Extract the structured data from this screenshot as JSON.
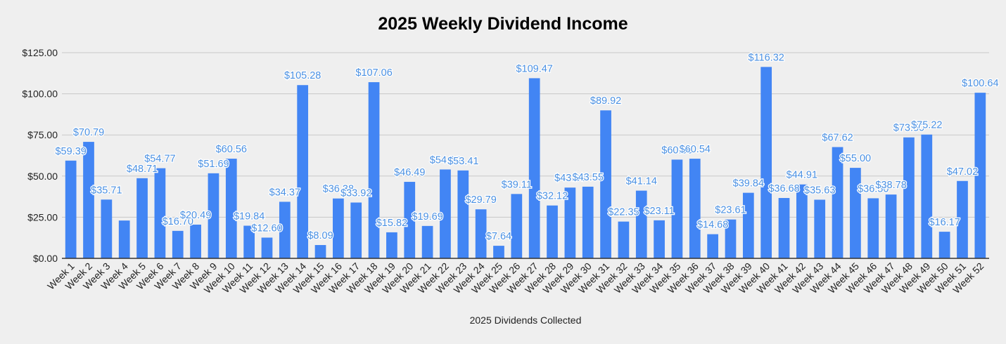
{
  "chart_data": {
    "type": "bar",
    "title": "2025 Weekly Dividend Income",
    "xlabel": "2025 Dividends Collected",
    "ylabel": "",
    "ylim": [
      0,
      125
    ],
    "yticks": [
      "$0.00",
      "$25.00",
      "$50.00",
      "$75.00",
      "$100.00",
      "$125.00"
    ],
    "grid": true,
    "legend": "none",
    "bar_color": "#4285f4",
    "label_color": "#4a90e2",
    "categories": [
      "Week 1",
      "Week 2",
      "Week 3",
      "Week 4",
      "Week 5",
      "Week 6",
      "Week 7",
      "Week 8",
      "Week 9",
      "Week 10",
      "Week 11",
      "Week 12",
      "Week 13",
      "Week 14",
      "Week 15",
      "Week 16",
      "Week 17",
      "Week 18",
      "Week 19",
      "Week 20",
      "Week 21",
      "Week 22",
      "Week 23",
      "Week 24",
      "Week 25",
      "Week 26",
      "Week 27",
      "Week 28",
      "Week 29",
      "Week 30",
      "Week 31",
      "Week 32",
      "Week 33",
      "Week 34",
      "Week 35",
      "Week 36",
      "Week 37",
      "Week 38",
      "Week 39",
      "Week 40",
      "Week 41",
      "Week 42",
      "Week 43",
      "Week 44",
      "Week 45",
      "Week 46",
      "Week 47",
      "Week 48",
      "Week 49",
      "Week 50",
      "Week 51",
      "Week 52"
    ],
    "values": [
      59.39,
      70.79,
      35.71,
      22.98,
      48.71,
      54.77,
      16.7,
      20.49,
      51.69,
      60.56,
      19.84,
      12.6,
      34.37,
      105.28,
      8.09,
      36.38,
      33.92,
      107.06,
      15.82,
      46.49,
      19.69,
      54.0,
      53.41,
      29.79,
      7.64,
      39.11,
      109.47,
      32.12,
      43.0,
      43.55,
      89.92,
      22.35,
      41.14,
      23.11,
      60.0,
      60.54,
      14.68,
      23.61,
      39.84,
      116.32,
      36.68,
      44.91,
      35.63,
      67.62,
      55.0,
      36.5,
      38.78,
      73.5,
      75.22,
      16.17,
      47.02,
      100.64
    ],
    "data_labels": [
      "$59.39",
      "$70.79",
      "$35.71",
      "",
      "$48.71",
      "$54.77",
      "$16.70",
      "$20.49",
      "$51.69",
      "$60.56",
      "$19.84",
      "$12.60",
      "$34.37",
      "$105.28",
      "$8.09",
      "$36.38",
      "$33.92",
      "$107.06",
      "$15.82",
      "$46.49",
      "$19.69",
      "$54.00",
      "$53.41",
      "$29.79",
      "$7.64",
      "$39.11",
      "$109.47",
      "$32.12",
      "$43.00",
      "$43.55",
      "$89.92",
      "$22.35",
      "$41.14",
      "$23.11",
      "$60.00",
      "$60.54",
      "$14.68",
      "$23.61",
      "$39.84",
      "$116.32",
      "$36.68",
      "$44.91",
      "$35.63",
      "$67.62",
      "$55.00",
      "$36.50",
      "$38.78",
      "$73.50",
      "$75.22",
      "$16.17",
      "$47.02",
      "$100.64"
    ]
  }
}
